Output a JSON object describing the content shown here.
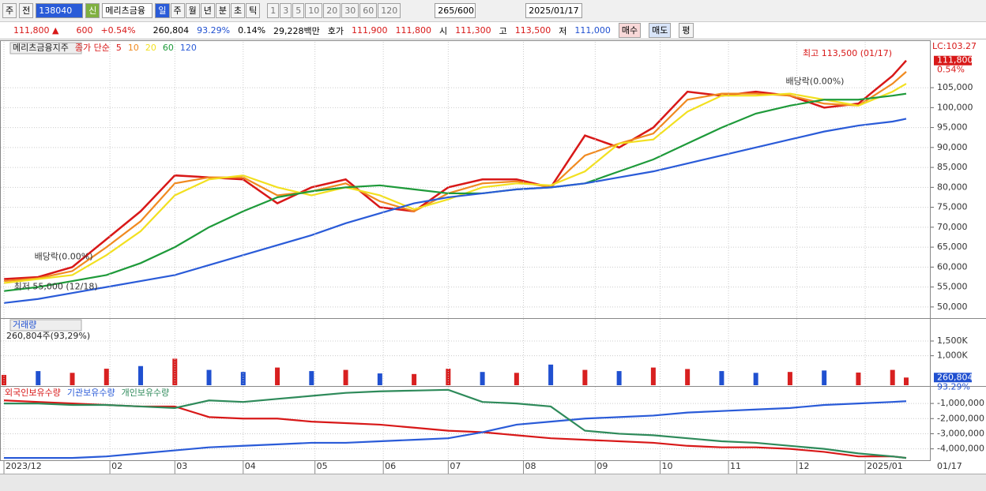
{
  "toolbar": {
    "market": "주",
    "prev": "전",
    "code": "138040",
    "name": "메리츠금융",
    "tag": "신",
    "periods": [
      "일",
      "주",
      "월",
      "년",
      "분",
      "초",
      "틱"
    ],
    "nums": [
      "1",
      "3",
      "5",
      "10",
      "20",
      "30",
      "60",
      "120"
    ],
    "count": "265/600",
    "date": "2025/01/17"
  },
  "quote": {
    "price": "111,800 ▲",
    "change": "600",
    "rate": "+0.54%",
    "volume": "260,804",
    "vol_ratio": "93.29%",
    "turnover": "0.14%",
    "amount": "29,228백만",
    "bid_label": "호가",
    "ask": "111,900",
    "bid": "111,800",
    "open_label": "시",
    "open": "111,300",
    "high_label": "고",
    "high": "113,500",
    "low_label": "저",
    "low": "111,000",
    "buy": "매수",
    "sell": "매도",
    "eval": "평"
  },
  "chart_data": [
    {
      "type": "line",
      "title": "메리츠금융지주",
      "legend_label": "종가 단순",
      "grid": true,
      "x": [
        0,
        10,
        20,
        30,
        40,
        50,
        60,
        70,
        80,
        90,
        100,
        110,
        120,
        130,
        140,
        150,
        160,
        170,
        180,
        190,
        200,
        210,
        220,
        230,
        240,
        250,
        260,
        264
      ],
      "xlim": [
        0,
        264
      ],
      "ylim": [
        47200,
        116500
      ],
      "yticks": [
        {
          "value": 50000,
          "label": "50,000"
        },
        {
          "value": 55000,
          "label": "55,000"
        },
        {
          "value": 60000,
          "label": "60,000"
        },
        {
          "value": 65000,
          "label": "65,000"
        },
        {
          "value": 70000,
          "label": "70,000"
        },
        {
          "value": 75000,
          "label": "75,000"
        },
        {
          "value": 80000,
          "label": "80,000"
        },
        {
          "value": 85000,
          "label": "85,000"
        },
        {
          "value": 90000,
          "label": "90,000"
        },
        {
          "value": 95000,
          "label": "95,000"
        },
        {
          "value": 100000,
          "label": "100,000"
        },
        {
          "value": 105000,
          "label": "105,000"
        }
      ],
      "series": [
        {
          "name": "5",
          "color": "#d81818",
          "values": [
            57000,
            57500,
            60000,
            67000,
            74000,
            83000,
            82500,
            82000,
            76000,
            80000,
            82000,
            75000,
            74000,
            80000,
            82000,
            82000,
            80000,
            93000,
            90000,
            95000,
            104000,
            103000,
            104000,
            103000,
            100000,
            101000,
            108000,
            111800
          ]
        },
        {
          "name": "10",
          "color": "#f08a20",
          "values": [
            56500,
            57200,
            59000,
            65000,
            71500,
            81000,
            82500,
            82500,
            78000,
            79000,
            81000,
            76500,
            74000,
            78500,
            81000,
            81500,
            80000,
            88000,
            91000,
            93500,
            102000,
            103500,
            103500,
            103000,
            101000,
            100500,
            106000,
            109000
          ]
        },
        {
          "name": "20",
          "color": "#f2e020",
          "values": [
            56000,
            57000,
            58000,
            63000,
            69000,
            78000,
            82000,
            83000,
            80000,
            78000,
            80000,
            78000,
            74500,
            77000,
            80000,
            81000,
            80500,
            84000,
            91000,
            92000,
            99000,
            103000,
            103000,
            103500,
            102000,
            100500,
            104000,
            106000
          ]
        },
        {
          "name": "60",
          "color": "#1e9a3a",
          "values": [
            54000,
            55000,
            56500,
            58000,
            61000,
            65000,
            70000,
            74000,
            77500,
            79000,
            80000,
            80500,
            79500,
            78500,
            78500,
            79500,
            80000,
            81000,
            84000,
            87000,
            91000,
            95000,
            98500,
            100500,
            102000,
            102000,
            103000,
            103500
          ]
        },
        {
          "name": "120",
          "color": "#2a5bd8",
          "values": [
            51000,
            52000,
            53500,
            55000,
            56500,
            58000,
            60500,
            63000,
            65500,
            68000,
            71000,
            73500,
            76000,
            77500,
            78500,
            79500,
            80000,
            81000,
            82500,
            84000,
            86000,
            88000,
            90000,
            92000,
            94000,
            95500,
            96500,
            97200
          ]
        }
      ],
      "annotations": [
        {
          "text": "최고 113,500 (01/17)",
          "x": 264,
          "value": 113500
        },
        {
          "text": "배당락(0.00%)",
          "x": 250,
          "value": 106500
        },
        {
          "text": "배당락(0.00%)",
          "x": 8,
          "value": 62500
        },
        {
          "text": "최저 55,000 (12/18)",
          "x": 2,
          "value": 55000
        }
      ],
      "lc": "LC:103.27",
      "last_label": "111,800",
      "last_value": 111800,
      "last_rate": "0.54%"
    },
    {
      "type": "bar",
      "title": "거래량",
      "subtitle": "260,804주(93,29%)",
      "grid": true,
      "x": [
        0,
        10,
        20,
        30,
        40,
        50,
        60,
        70,
        80,
        90,
        100,
        110,
        120,
        130,
        140,
        150,
        160,
        170,
        180,
        190,
        200,
        210,
        220,
        230,
        240,
        250,
        260,
        264
      ],
      "xlim": [
        0,
        264
      ],
      "ylim": [
        0,
        2250000
      ],
      "yticks": [
        {
          "value": 1000000,
          "label": "1,000K"
        },
        {
          "value": 1500000,
          "label": "1,500K"
        }
      ],
      "values": [
        350000,
        480000,
        420000,
        560000,
        650000,
        900000,
        520000,
        450000,
        600000,
        480000,
        520000,
        400000,
        380000,
        560000,
        450000,
        420000,
        700000,
        520000,
        480000,
        600000,
        550000,
        480000,
        420000,
        450000,
        500000,
        430000,
        520000,
        260804
      ],
      "colors": [
        "#d82020",
        "#2050d0",
        "#d82020",
        "#d82020",
        "#2050d0",
        "#d82020",
        "#2050d0",
        "#2050d0",
        "#d82020",
        "#2050d0",
        "#d82020",
        "#2050d0",
        "#d82020",
        "#d82020",
        "#2050d0",
        "#d82020",
        "#2050d0",
        "#d82020",
        "#2050d0",
        "#d82020",
        "#d82020",
        "#2050d0",
        "#2050d0",
        "#d82020",
        "#2050d0",
        "#d82020",
        "#d82020",
        "#d82020"
      ],
      "last_label": "260,804",
      "last_value": 260804,
      "last_rate": "93.29%"
    },
    {
      "type": "line",
      "grid": true,
      "x": [
        0,
        10,
        20,
        30,
        40,
        50,
        60,
        70,
        80,
        90,
        100,
        110,
        120,
        130,
        140,
        150,
        160,
        170,
        180,
        190,
        200,
        210,
        220,
        230,
        240,
        250,
        260,
        264
      ],
      "xlim": [
        0,
        264
      ],
      "ylim": [
        -4750000,
        100000
      ],
      "yticks": [
        {
          "value": -1000000,
          "label": "-1,000,000"
        },
        {
          "value": -2000000,
          "label": "-2,000,000"
        },
        {
          "value": -3000000,
          "label": "-3,000,000"
        },
        {
          "value": -4000000,
          "label": "-4,000,000"
        }
      ],
      "xticks": [
        {
          "value": 0,
          "label": "2023/12"
        },
        {
          "value": 31,
          "label": "02"
        },
        {
          "value": 50,
          "label": "03"
        },
        {
          "value": 70,
          "label": "04"
        },
        {
          "value": 91,
          "label": "05"
        },
        {
          "value": 111,
          "label": "06"
        },
        {
          "value": 130,
          "label": "07"
        },
        {
          "value": 152,
          "label": "08"
        },
        {
          "value": 173,
          "label": "09"
        },
        {
          "value": 192,
          "label": "10"
        },
        {
          "value": 212,
          "label": "11"
        },
        {
          "value": 232,
          "label": "12"
        },
        {
          "value": 252,
          "label": "2025/01"
        }
      ],
      "x_end_label": "01/17",
      "series": [
        {
          "name": "외국인보유수량",
          "color": "#d81818",
          "values": [
            -800000,
            -900000,
            -1000000,
            -1100000,
            -1200000,
            -1200000,
            -1900000,
            -2000000,
            -2000000,
            -2200000,
            -2300000,
            -2400000,
            -2600000,
            -2800000,
            -2900000,
            -3100000,
            -3300000,
            -3400000,
            -3500000,
            -3600000,
            -3800000,
            -3900000,
            -3900000,
            -4000000,
            -4200000,
            -4500000,
            -4500000,
            -4600000
          ]
        },
        {
          "name": "기관보유수량",
          "color": "#2a5bd8",
          "values": [
            -4600000,
            -4600000,
            -4600000,
            -4500000,
            -4300000,
            -4100000,
            -3900000,
            -3800000,
            -3700000,
            -3600000,
            -3600000,
            -3500000,
            -3400000,
            -3300000,
            -2900000,
            -2400000,
            -2200000,
            -2000000,
            -1900000,
            -1800000,
            -1600000,
            -1500000,
            -1400000,
            -1300000,
            -1100000,
            -1000000,
            -900000,
            -850000
          ]
        },
        {
          "name": "개인보유수량",
          "color": "#2e8a5a",
          "values": [
            -1000000,
            -1000000,
            -1100000,
            -1100000,
            -1200000,
            -1300000,
            -800000,
            -900000,
            -700000,
            -500000,
            -300000,
            -200000,
            -150000,
            -100000,
            -900000,
            -1000000,
            -1200000,
            -2800000,
            -3000000,
            -3100000,
            -3300000,
            -3500000,
            -3600000,
            -3800000,
            -4000000,
            -4300000,
            -4500000,
            -4600000
          ]
        }
      ]
    }
  ]
}
